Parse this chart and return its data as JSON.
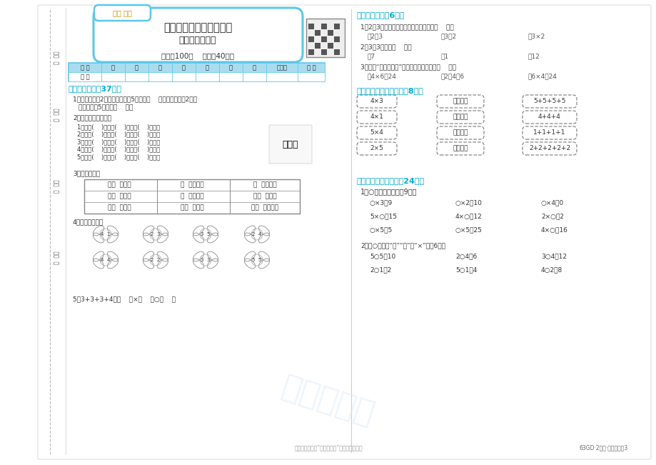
{
  "title_main": "第二单元知识回顾与检测",
  "title_sub": "表内乘法（一）",
  "brand": "黄风 名卷",
  "score_info": "满分：100分    时间：40分钟",
  "table_headers": [
    "题 号",
    "一",
    "二",
    "三",
    "四",
    "五",
    "六",
    "七",
    "附加题",
    "总 分"
  ],
  "table_row": [
    "得 分",
    "",
    "",
    "",
    "",
    "",
    "",
    "",
    "",
    ""
  ],
  "section1_title": "一、填一填。（37分）",
  "section2_title": "二、选一选。（6分）",
  "section2_q1": "1．2个3相加的和是多少？正确的列式是（    ）。",
  "section2_q1_opts": [
    "\u00012＋3",
    "\u00023＋2",
    "\u00033×2"
  ],
  "section2_q2": "2．3乘3的积是（    ）。",
  "section2_q2_opts": [
    "\u00017",
    "\u00021",
    "\u000312"
  ],
  "section2_q3": "3．根据“四六二十四”不可以写成的算式是（    ）。",
  "section2_q3_opts": [
    "\u00014×6＝24",
    "\u00022＋4＝6",
    "\u00036×4＝24"
  ],
  "section3_title": "三、找朋友，手拉手。（8分）",
  "section3_boxes_left": [
    "4×3",
    "4×1",
    "5×4",
    "2×5"
  ],
  "section3_boxes_mid": [
    "一四得四",
    "二五一十",
    "三四十二",
    "四五二十"
  ],
  "section3_boxes_right": [
    "5+5+5+5",
    "4+4+4",
    "1+1+1+1",
    "2+2+2+2+2"
  ],
  "section4_title": "四、按要求做一做。（24分）",
  "section4_q1_title": "1．○里面藏着几？（9分）",
  "section4_q1_items": [
    [
      "○×3＝9",
      "○×2＝10",
      "○×4＝0"
    ],
    [
      "5×○＝15",
      "4×○＝12",
      "2×○＝2"
    ],
    [
      "○×5＝5",
      "○×5＝25",
      "4×○＝16"
    ]
  ],
  "section4_q2_title": "2．在○里填上“＋”“－”或“×”。（6分）",
  "section4_q2_items": [
    [
      "5○5＝10",
      "2○4＝6",
      "3○4＝12"
    ],
    [
      "2○1＝2",
      "5○1＝4",
      "4○2＝8"
    ]
  ],
  "bg_color": "#ffffff",
  "header_color": "#5bc8e8",
  "section_color": "#00aacc",
  "text_color": "#333333",
  "footer_text": "关注微信公众号“数辅宝粉丝”获取更多只算题",
  "page_info": "63GD·2年级·数学（上）3",
  "frog_lines": [
    "1只青蛙(    )张嘴，(    )只眼睛(    )条腿。",
    "2只青蛙(    )张嘴，(    )只眼睛(    )条腿。",
    "3只青蛙(    )张嘴，(    )只眼睛(    )条腿。",
    "4只青蛙(    )张嘴，(    )只眼睛(    )条腿。",
    "5只青蛙(    )张嘴，(    )只眼睛(    )条腿。"
  ],
  "table2_rows": [
    [
      "二（  ）一十",
      "（  ）三得六",
      "（  ）四得八"
    ],
    [
      "三（  ）十五",
      "（  ）四得四",
      "三（  ）十二"
    ],
    [
      "四（  ）二十",
      "三（  ）得九",
      "五（  ）二十五"
    ]
  ],
  "butterfly_row1_labels": [
    "4  1",
    "2  3",
    "3  5",
    "2  4"
  ],
  "butterfly_row2_labels": [
    "4  4",
    "2  2",
    "3  3",
    "5  5"
  ],
  "section1_q5": "5．3+3+3+4＝（    ）×（    ）○（    ）"
}
